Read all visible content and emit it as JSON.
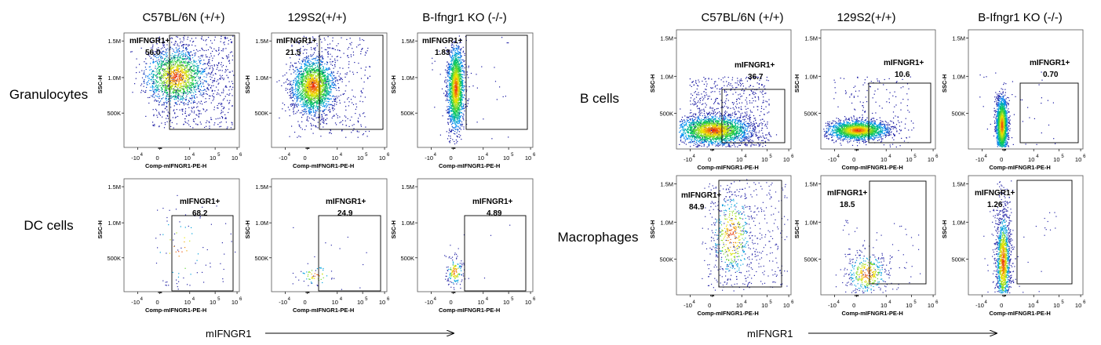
{
  "figure": {
    "arrow_label": "mIFNGR1",
    "left_panel": {
      "columns": [
        "C57BL/6N (+/+)",
        "129S2(+/+)",
        "B-Ifngr1 KO (-/-)"
      ],
      "rows": [
        "Granulocytes",
        "DC cells"
      ]
    },
    "right_panel": {
      "columns": [
        "C57BL/6N (+/+)",
        "129S2(+/+)",
        "B-Ifngr1 KO (-/-)"
      ],
      "rows": [
        "B cells",
        "Macrophages"
      ]
    }
  },
  "chart_data": {
    "type": "scatter",
    "description_axes": {
      "xlabel": "Comp-mIFNGR1-PE-H",
      "ylabel": "SSC-H",
      "x_ticks": [
        "-10^4",
        "0",
        "10^4",
        "10^5",
        "10^6"
      ],
      "y_ticks": [
        "500K",
        "1.0M",
        "1.5M"
      ],
      "x_scale": "biexponential",
      "y_scale": "linear"
    },
    "gate_label": "mIFNGR1+",
    "plots": [
      {
        "cell_type": "Granulocytes",
        "strain": "C57BL/6N (+/+)",
        "gate_percent": "56.0",
        "density": "high"
      },
      {
        "cell_type": "Granulocytes",
        "strain": "129S2(+/+)",
        "gate_percent": "21.5",
        "density": "high"
      },
      {
        "cell_type": "Granulocytes",
        "strain": "B-Ifngr1 KO (-/-)",
        "gate_percent": "1.83",
        "density": "high"
      },
      {
        "cell_type": "DC cells",
        "strain": "C57BL/6N (+/+)",
        "gate_percent": "68.2",
        "density": "low"
      },
      {
        "cell_type": "DC cells",
        "strain": "129S2(+/+)",
        "gate_percent": "24.9",
        "density": "low"
      },
      {
        "cell_type": "DC cells",
        "strain": "B-Ifngr1 KO (-/-)",
        "gate_percent": "4.89",
        "density": "low"
      },
      {
        "cell_type": "B cells",
        "strain": "C57BL/6N (+/+)",
        "gate_percent": "36.7",
        "density": "high"
      },
      {
        "cell_type": "B cells",
        "strain": "129S2(+/+)",
        "gate_percent": "10.6",
        "density": "high"
      },
      {
        "cell_type": "B cells",
        "strain": "B-Ifngr1 KO (-/-)",
        "gate_percent": "0.70",
        "density": "high"
      },
      {
        "cell_type": "Macrophages",
        "strain": "C57BL/6N (+/+)",
        "gate_percent": "84.9",
        "density": "medium"
      },
      {
        "cell_type": "Macrophages",
        "strain": "129S2(+/+)",
        "gate_percent": "18.5",
        "density": "medium"
      },
      {
        "cell_type": "Macrophages",
        "strain": "B-Ifngr1 KO (-/-)",
        "gate_percent": "1.26",
        "density": "medium"
      }
    ]
  }
}
